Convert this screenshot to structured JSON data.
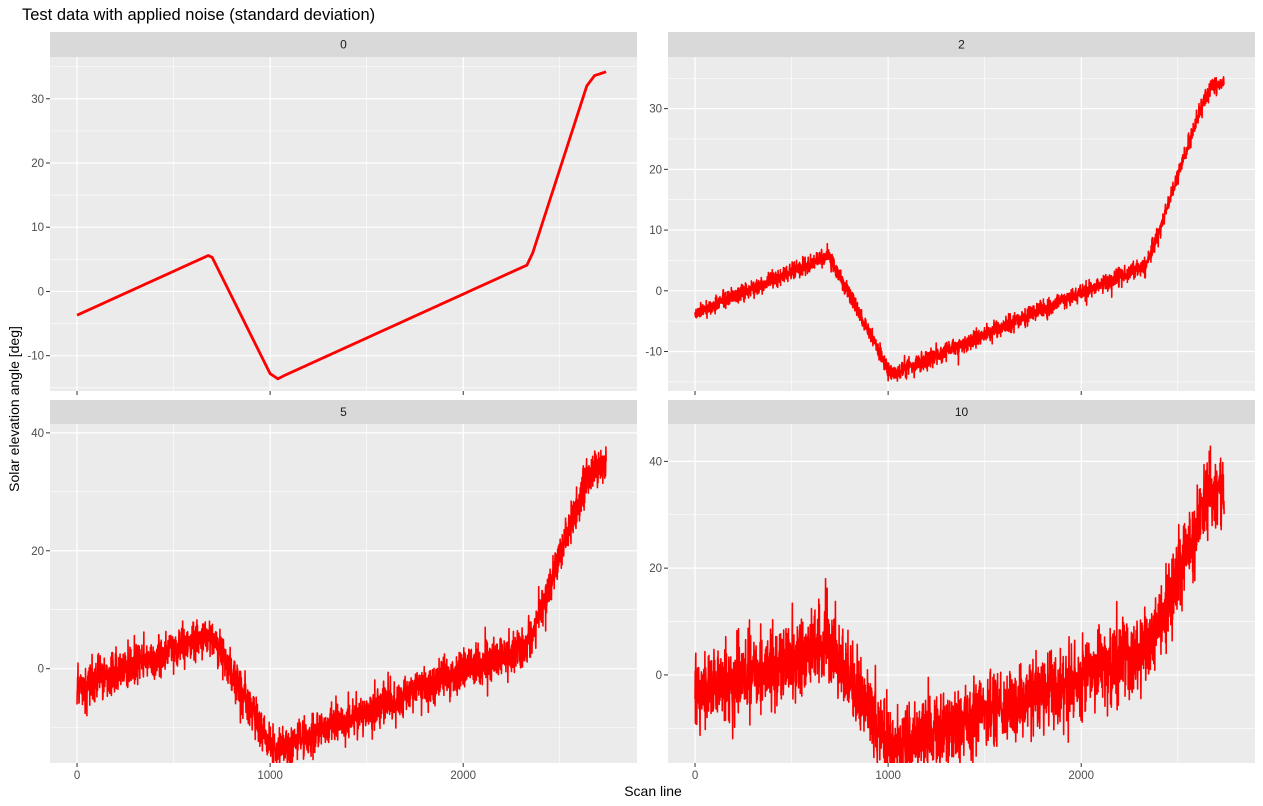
{
  "chart_data": {
    "type": "line",
    "title": "Test data with applied noise (standard deviation)",
    "xlabel": "Scan line",
    "ylabel": "Solar elevation angle [deg]",
    "grid": true,
    "facet_layout": "2x2",
    "series_color": "#ff0000",
    "panel_background": "#ebebeb",
    "strip_background": "#d9d9d9",
    "grid_color": "#ffffff",
    "xlim": [
      -140,
      2900
    ],
    "x_ticks": [
      0,
      1000,
      2000
    ],
    "x_tick_labels": [
      "0",
      "1000",
      "2000"
    ],
    "base_curve": {
      "x": [
        0,
        680,
        700,
        730,
        1000,
        1040,
        1080,
        2330,
        2360,
        2640,
        2680,
        2740
      ],
      "y": [
        -3.7,
        5.6,
        5.3,
        3.5,
        -12.8,
        -13.6,
        -13.0,
        4.1,
        6.0,
        32.0,
        33.6,
        34.2
      ]
    },
    "panels": [
      {
        "label": "0",
        "noise_sd": 0,
        "ylim": [
          -15.5,
          36.5
        ],
        "y_ticks": [
          -10,
          0,
          10,
          20,
          30
        ],
        "y_tick_labels": [
          "-10",
          "0",
          "10",
          "20",
          "30"
        ]
      },
      {
        "label": "2",
        "noise_sd": 2,
        "ylim": [
          -16.5,
          38.5
        ],
        "y_ticks": [
          -10,
          0,
          10,
          20,
          30
        ],
        "y_tick_labels": [
          "-10",
          "0",
          "10",
          "20",
          "30"
        ]
      },
      {
        "label": "5",
        "noise_sd": 5,
        "ylim": [
          -16,
          41.5
        ],
        "y_ticks": [
          0,
          20,
          40
        ],
        "y_tick_labels": [
          "0",
          "20",
          "40"
        ]
      },
      {
        "label": "10",
        "noise_sd": 10,
        "ylim": [
          -16.5,
          47
        ],
        "y_ticks": [
          0,
          20,
          40
        ],
        "y_tick_labels": [
          "0",
          "20",
          "40"
        ]
      }
    ]
  }
}
